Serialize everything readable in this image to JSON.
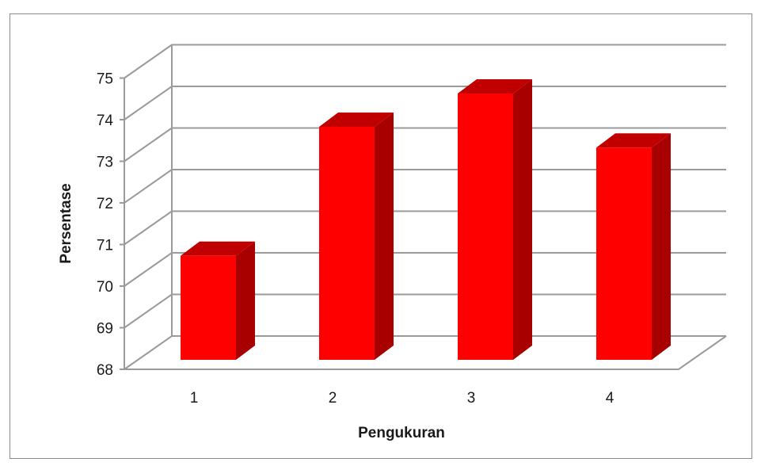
{
  "chart_data": {
    "type": "bar",
    "style": "3d-column",
    "categories": [
      "1",
      "2",
      "3",
      "4"
    ],
    "values": [
      70.5,
      73.6,
      74.4,
      73.1
    ],
    "xlabel": "Pengukuran",
    "ylabel": "Persentase",
    "ylim": [
      68,
      75
    ],
    "yticks": [
      "68",
      "69",
      "70",
      "71",
      "72",
      "73",
      "74",
      "75"
    ],
    "grid": true,
    "legend": "none",
    "colors": {
      "bar_front": "#ff0000",
      "bar_side": "#a80000",
      "bar_top": "#c00000",
      "grid": "#9a9a9a"
    }
  }
}
